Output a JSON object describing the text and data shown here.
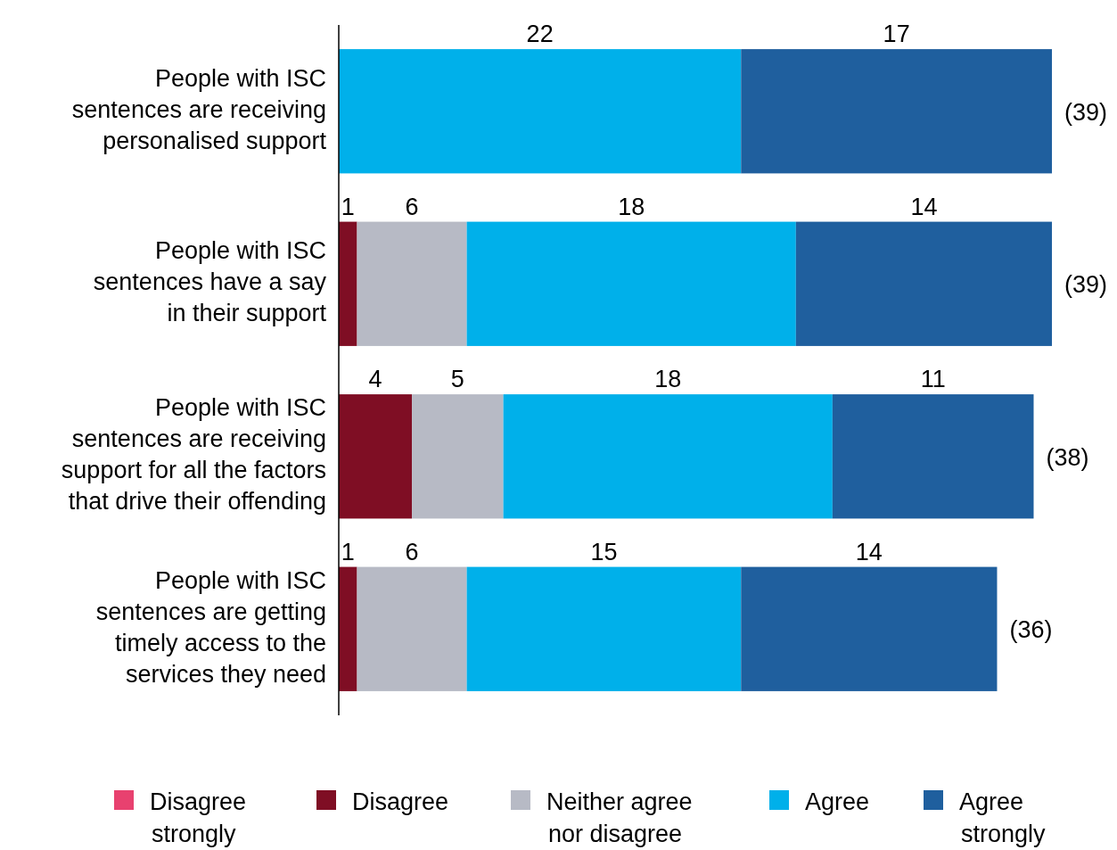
{
  "chart_data": {
    "type": "bar",
    "orientation": "horizontal",
    "stacked": true,
    "data_labels": true,
    "legend": "bottom",
    "categories": [
      "People with ISC\nsentences are receiving\npersonalised support",
      "People with ISC\nsentences have a say\nin their support",
      "People with ISC\nsentences are receiving\nsupport for all the factors\nthat drive their offending",
      "People with ISC\nsentences are getting\ntimely access to the\nservices they need"
    ],
    "series": [
      {
        "name": "Disagree\nstrongly",
        "color": "#e8416f",
        "values": [
          null,
          null,
          null,
          null
        ]
      },
      {
        "name": "Disagree",
        "color": "#7f0e24",
        "values": [
          null,
          1,
          4,
          1
        ]
      },
      {
        "name": "Neither agree\nnor disagree",
        "color": "#b7bac5",
        "values": [
          null,
          6,
          5,
          6
        ]
      },
      {
        "name": "Agree",
        "color": "#00b0ea",
        "values": [
          22,
          18,
          18,
          15
        ]
      },
      {
        "name": "Agree\nstrongly",
        "color": "#1f5f9e",
        "values": [
          17,
          14,
          11,
          14
        ]
      }
    ],
    "totals": [
      "(39)",
      "(39)",
      "(38)",
      "(36)"
    ]
  }
}
